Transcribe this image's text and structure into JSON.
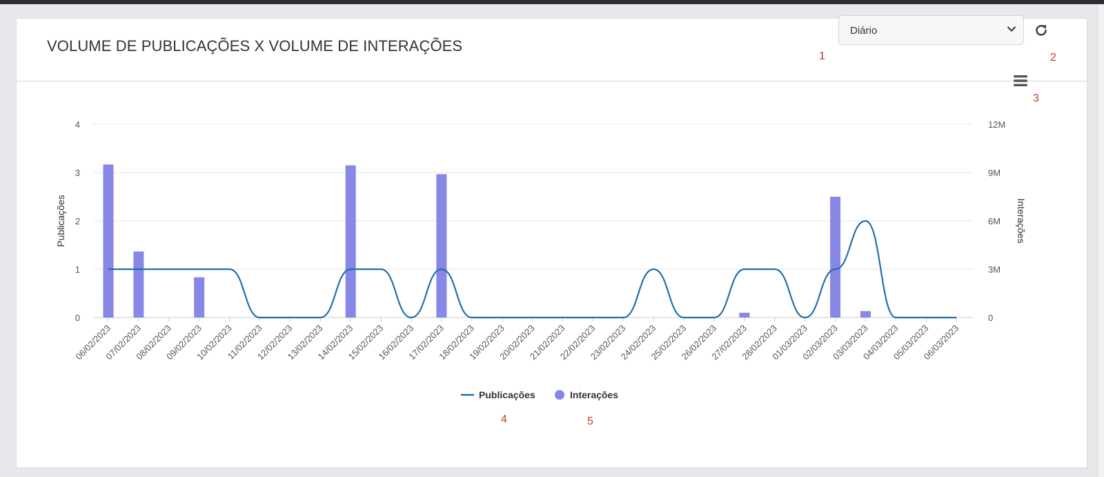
{
  "header": {
    "title": "VOLUME DE PUBLICAÇÕES X VOLUME DE INTERAÇÕES",
    "period_select": {
      "value": "Diário"
    }
  },
  "annotations": [
    "1",
    "2",
    "3",
    "4",
    "5"
  ],
  "icons": {
    "refresh": "refresh-icon",
    "menu": "hamburger-menu-icon",
    "chevron": "chevron-down-icon"
  },
  "colors": {
    "publicacoes": "#1f6fa8",
    "interacoes": "#8787e6",
    "grid": "#e6e6e6",
    "annotation": "#c0392b"
  },
  "chart_data": {
    "type": "bar+line",
    "categories": [
      "06/02/2023",
      "07/02/2023",
      "08/02/2023",
      "09/02/2023",
      "10/02/2023",
      "11/02/2023",
      "12/02/2023",
      "13/02/2023",
      "14/02/2023",
      "15/02/2023",
      "16/02/2023",
      "17/02/2023",
      "18/02/2023",
      "19/02/2023",
      "20/02/2023",
      "21/02/2023",
      "22/02/2023",
      "23/02/2023",
      "24/02/2023",
      "25/02/2023",
      "26/02/2023",
      "27/02/2023",
      "28/02/2023",
      "01/03/2023",
      "02/03/2023",
      "03/03/2023",
      "04/03/2023",
      "05/03/2023",
      "06/03/2023"
    ],
    "series": [
      {
        "name": "Publicações",
        "type": "spline",
        "axis": "left",
        "values": [
          1,
          1,
          1,
          1,
          1,
          0,
          0,
          0,
          1,
          1,
          0,
          1,
          0,
          0,
          0,
          0,
          0,
          0,
          1,
          0,
          0,
          1,
          1,
          0,
          1,
          2,
          0,
          0,
          0
        ]
      },
      {
        "name": "Interações",
        "type": "column",
        "axis": "right",
        "values": [
          9500000,
          4100000,
          0,
          2500000,
          0,
          0,
          0,
          0,
          9450000,
          0,
          0,
          8900000,
          0,
          0,
          0,
          0,
          0,
          0,
          0,
          0,
          0,
          300000,
          0,
          0,
          7500000,
          400000,
          0,
          0,
          0
        ]
      }
    ],
    "y_left": {
      "label": "Publicações",
      "min": 0,
      "max": 4,
      "ticks": [
        "0",
        "1",
        "2",
        "3",
        "4"
      ]
    },
    "y_right": {
      "label": "Interações",
      "min": 0,
      "max": 12000000,
      "ticks": [
        "0",
        "3M",
        "6M",
        "9M",
        "12M"
      ]
    },
    "grid": true,
    "legend": {
      "position": "bottom-center",
      "items": [
        "Publicações",
        "Interações"
      ]
    }
  }
}
